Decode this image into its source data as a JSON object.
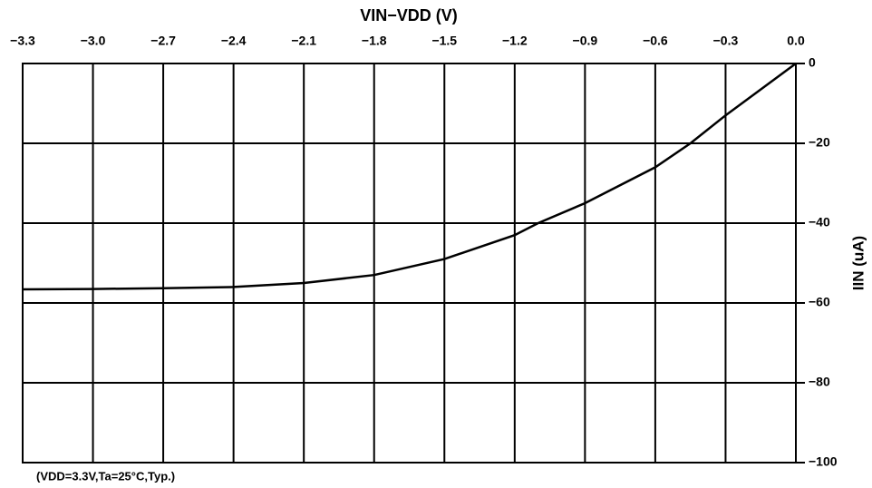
{
  "chart_data": {
    "type": "line",
    "title": "VIN−VDD (V)",
    "y_label": "IIN (uA)",
    "annotation": "(VDD=3.3V,Ta=25°C,Typ.)",
    "x": [
      -3.3,
      -3.0,
      -2.7,
      -2.4,
      -2.1,
      -1.8,
      -1.5,
      -1.2,
      -1.1,
      -0.9,
      -0.6,
      -0.45,
      -0.3,
      -0.15,
      0.0
    ],
    "values": [
      -56.6,
      -56.5,
      -56.3,
      -56,
      -55,
      -53,
      -49,
      -43,
      -40,
      -35,
      -26,
      -20,
      -13,
      -6.5,
      0
    ],
    "color": "#000000",
    "xlim": [
      -3.3,
      0
    ],
    "ylim": [
      -100,
      0
    ],
    "xticks": [
      {
        "value": -3.3,
        "label": "−3.3"
      },
      {
        "value": -3.0,
        "label": "−3.0"
      },
      {
        "value": -2.7,
        "label": "−2.7"
      },
      {
        "value": -2.4,
        "label": "−2.4"
      },
      {
        "value": -2.1,
        "label": "−2.1"
      },
      {
        "value": -1.8,
        "label": "−1.8"
      },
      {
        "value": -1.5,
        "label": "−1.5"
      },
      {
        "value": -1.2,
        "label": "−1.2"
      },
      {
        "value": -0.9,
        "label": "−0.9"
      },
      {
        "value": -0.6,
        "label": "−0.6"
      },
      {
        "value": -0.3,
        "label": "−0.3"
      },
      {
        "value": 0,
        "label": "0.0"
      }
    ],
    "yticks": [
      0,
      {
        "value": -20,
        "label": "−20"
      },
      {
        "value": -40,
        "label": "−40"
      },
      {
        "value": -60,
        "label": "−60"
      },
      {
        "value": -80,
        "label": "−80"
      },
      {
        "value": -100,
        "label": "−100"
      }
    ],
    "grid": true
  }
}
